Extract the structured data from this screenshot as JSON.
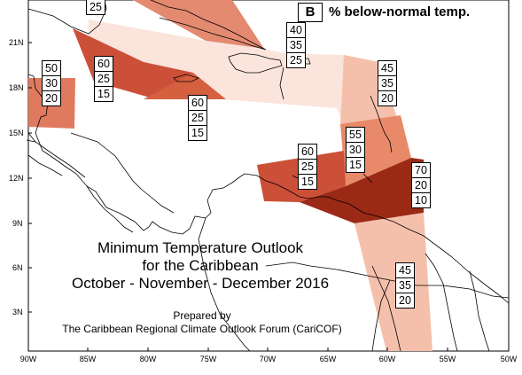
{
  "title": {
    "line1": "Minimum Temperature Outlook",
    "line2": "for the Caribbean",
    "line3": "October - November - December 2016"
  },
  "credit": {
    "line1": "Prepared by",
    "line2": "The Caribbean Regional Climate Outlook Forum (CariCOF)"
  },
  "legend": {
    "key": "B",
    "text": "% below-normal temp."
  },
  "axes": {
    "lat_labels": [
      "21N",
      "18N",
      "15N",
      "12N",
      "9N",
      "6N",
      "3N"
    ],
    "lon_labels": [
      "90W",
      "85W",
      "80W",
      "75W",
      "70W",
      "65W",
      "60W",
      "55W",
      "50W"
    ]
  },
  "colors": {
    "below_70": "#9a2a16",
    "below_60": "#cc5038",
    "below_55": "#e07a5e",
    "below_50": "#e38a70",
    "below_45": "#f5c0ab",
    "below_40": "#fbe4dc",
    "land_line": "#000000"
  },
  "regions": {
    "r25": [
      "25"
    ],
    "r40": [
      "40",
      "35",
      "25"
    ],
    "r50": [
      "50",
      "30",
      "20"
    ],
    "r60a": [
      "60",
      "25",
      "15"
    ],
    "r60b": [
      "60",
      "25",
      "15"
    ],
    "r45a": [
      "45",
      "35",
      "20"
    ],
    "r55": [
      "55",
      "30",
      "15"
    ],
    "r60c": [
      "60",
      "25",
      "15"
    ],
    "r70": [
      "70",
      "20",
      "10"
    ],
    "r45b": [
      "45",
      "35",
      "20"
    ]
  }
}
